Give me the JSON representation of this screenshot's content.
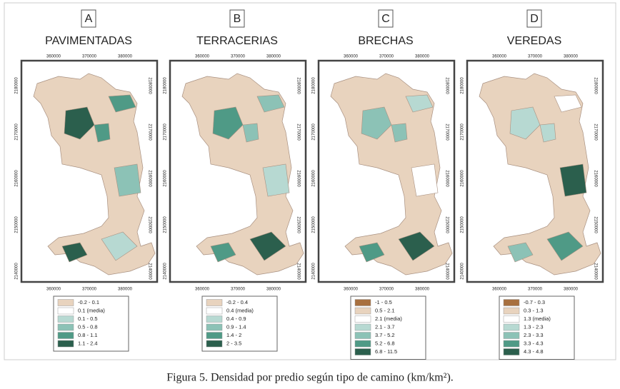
{
  "panels": [
    {
      "letter": "A",
      "title": "PAVIMENTADAS",
      "legend": [
        {
          "label": "-0.2 - 0.1",
          "color": "#e8d3be"
        },
        {
          "label": "0.1 (media)",
          "color": "#ffffff"
        },
        {
          "label": "0.1 - 0.5",
          "color": "#b7d9d2"
        },
        {
          "label": "0.5 - 0.8",
          "color": "#8cc2b6"
        },
        {
          "label": "0.8 - 1.1",
          "color": "#4f9a86"
        },
        {
          "label": "1.1 - 2.4",
          "color": "#2b5f4d"
        }
      ]
    },
    {
      "letter": "B",
      "title": "TERRACERIAS",
      "legend": [
        {
          "label": "-0.2 - 0.4",
          "color": "#e8d3be"
        },
        {
          "label": "0.4  (media)",
          "color": "#ffffff"
        },
        {
          "label": "0.4 - 0.9",
          "color": "#b7d9d2"
        },
        {
          "label": "0.9 - 1.4",
          "color": "#8cc2b6"
        },
        {
          "label": "1.4 - 2",
          "color": "#4f9a86"
        },
        {
          "label": "2 - 3.5",
          "color": "#2b5f4d"
        }
      ]
    },
    {
      "letter": "C",
      "title": "BRECHAS",
      "legend": [
        {
          "label": "-1 - 0.5",
          "color": "#a8703f"
        },
        {
          "label": "0.5 - 2.1",
          "color": "#e8d3be"
        },
        {
          "label": "2.1 (media)",
          "color": "#ffffff"
        },
        {
          "label": "2.1 - 3.7",
          "color": "#b7d9d2"
        },
        {
          "label": "3.7 - 5.2",
          "color": "#8cc2b6"
        },
        {
          "label": "5.2 - 6.8",
          "color": "#4f9a86"
        },
        {
          "label": "6.8 - 11.5",
          "color": "#2b5f4d"
        }
      ]
    },
    {
      "letter": "D",
      "title": "VEREDAS",
      "legend": [
        {
          "label": "-0.7 - 0.3",
          "color": "#a8703f"
        },
        {
          "label": "0.3 - 1.3",
          "color": "#e8d3be"
        },
        {
          "label": "1.3 (media)",
          "color": "#ffffff"
        },
        {
          "label": "1.3 - 2.3",
          "color": "#b7d9d2"
        },
        {
          "label": "2.3 - 3.3",
          "color": "#8cc2b6"
        },
        {
          "label": "3.3 - 4.3",
          "color": "#4f9a86"
        },
        {
          "label": "4.3 - 4.8",
          "color": "#2b5f4d"
        }
      ]
    }
  ],
  "xticks": [
    "360000",
    "370000",
    "380000"
  ],
  "yticks": [
    "2180000",
    "2170000",
    "2160000",
    "2150000",
    "2140000"
  ],
  "caption": "Figura 5. Densidad por predio según tipo de camino (km/km²)."
}
